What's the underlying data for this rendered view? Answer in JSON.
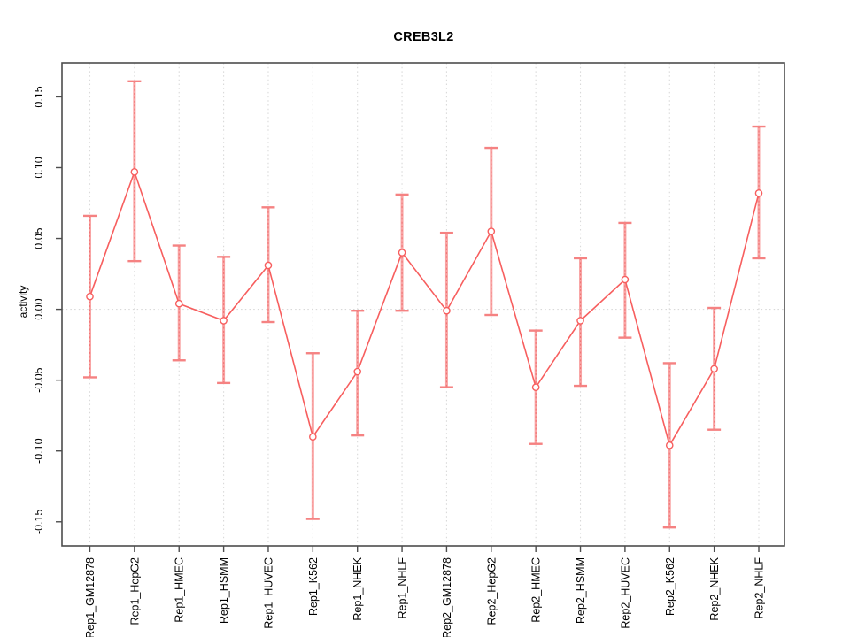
{
  "chart_data": {
    "type": "line",
    "title": "CREB3L2",
    "xlabel": "",
    "ylabel": "activity",
    "ylim": [
      -0.167,
      0.174
    ],
    "grid": "dotted vertical gridline at each category; dotted horizontal line at y=0",
    "legend": "none",
    "y_ticks": {
      "values": [
        -0.15,
        -0.1,
        -0.05,
        0.0,
        0.05,
        0.1,
        0.15
      ],
      "labels": [
        "-0.15",
        "-0.10",
        "-0.05",
        "0.00",
        "0.05",
        "0.10",
        "0.15"
      ]
    },
    "categories": [
      "Rep1_GM12878",
      "Rep1_HepG2",
      "Rep1_HMEC",
      "Rep1_HSMM",
      "Rep1_HUVEC",
      "Rep1_K562",
      "Rep1_NHEK",
      "Rep1_NHLF",
      "Rep2_GM12878",
      "Rep2_HepG2",
      "Rep2_HMEC",
      "Rep2_HSMM",
      "Rep2_HUVEC",
      "Rep2_K562",
      "Rep2_NHEK",
      "Rep2_NHLF"
    ],
    "series": [
      {
        "name": "activity",
        "marker": "open-circle",
        "values": [
          0.009,
          0.097,
          0.004,
          -0.008,
          0.031,
          -0.09,
          -0.044,
          0.04,
          -0.001,
          0.055,
          -0.055,
          -0.008,
          0.021,
          -0.096,
          -0.042,
          0.082
        ],
        "error_low": [
          -0.048,
          0.034,
          -0.036,
          -0.052,
          -0.009,
          -0.148,
          -0.089,
          -0.001,
          -0.055,
          -0.004,
          -0.095,
          -0.054,
          -0.02,
          -0.154,
          -0.085,
          0.036
        ],
        "error_high": [
          0.066,
          0.161,
          0.045,
          0.037,
          0.072,
          -0.031,
          -0.001,
          0.081,
          0.054,
          0.114,
          -0.015,
          0.036,
          0.061,
          -0.038,
          0.001,
          0.129
        ]
      }
    ],
    "colors": {
      "series_line": "#F75E5E",
      "marker_stroke": "#F75E5E",
      "marker_fill": "#FFFFFF",
      "error_bar": "#F9A4A4",
      "error_bar_core": "#EE6A6A",
      "error_cap": "#F58282",
      "gridline": "#D9D9D9",
      "zero_line": "#D9D9D9",
      "frame": "#4D4D4D",
      "text": "#000000"
    }
  }
}
